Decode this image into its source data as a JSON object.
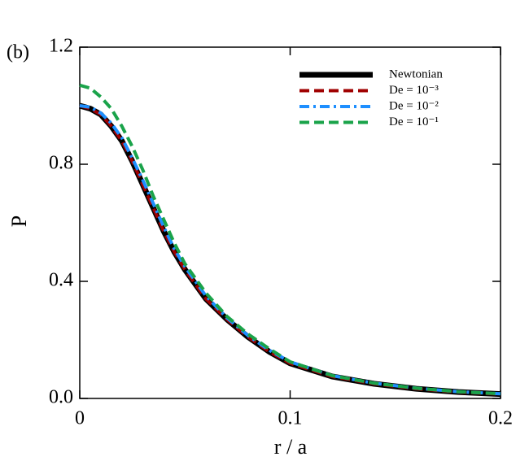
{
  "chart_data": {
    "type": "line",
    "panel_label": "(b)",
    "x_label": "r / a",
    "y_label": "P",
    "x": [
      0,
      0.005,
      0.01,
      0.015,
      0.02,
      0.025,
      0.03,
      0.035,
      0.04,
      0.045,
      0.05,
      0.06,
      0.07,
      0.08,
      0.09,
      0.1,
      0.12,
      0.14,
      0.16,
      0.18,
      0.2
    ],
    "series": [
      {
        "name": "Newtonian",
        "color": "#000000",
        "dash": "solid",
        "values": [
          1.0,
          0.99,
          0.97,
          0.93,
          0.88,
          0.81,
          0.73,
          0.65,
          0.57,
          0.5,
          0.44,
          0.34,
          0.27,
          0.21,
          0.16,
          0.12,
          0.075,
          0.05,
          0.033,
          0.022,
          0.015
        ]
      },
      {
        "name": "De = 10⁻³",
        "color": "#a00000",
        "dash": "dashed",
        "values": [
          1.0,
          0.99,
          0.97,
          0.93,
          0.88,
          0.81,
          0.73,
          0.65,
          0.57,
          0.5,
          0.44,
          0.34,
          0.27,
          0.21,
          0.16,
          0.12,
          0.075,
          0.05,
          0.033,
          0.022,
          0.015
        ]
      },
      {
        "name": "De = 10⁻²",
        "color": "#1e8fff",
        "dash": "dashdot",
        "values": [
          1.0,
          0.995,
          0.975,
          0.94,
          0.89,
          0.82,
          0.745,
          0.665,
          0.585,
          0.51,
          0.45,
          0.35,
          0.275,
          0.215,
          0.165,
          0.125,
          0.078,
          0.052,
          0.035,
          0.023,
          0.016
        ]
      },
      {
        "name": "De = 10⁻¹",
        "color": "#1aa34a",
        "dash": "dashed",
        "values": [
          1.07,
          1.06,
          1.03,
          0.99,
          0.93,
          0.86,
          0.78,
          0.69,
          0.61,
          0.53,
          0.46,
          0.36,
          0.28,
          0.22,
          0.17,
          0.125,
          0.078,
          0.052,
          0.035,
          0.023,
          0.016
        ]
      }
    ],
    "xlim": [
      0,
      0.2
    ],
    "xticks": [
      0,
      0.1,
      0.2
    ],
    "ylim": [
      0,
      1.2
    ],
    "yticks": [
      {
        "value": 0,
        "label": "0.0"
      },
      0.4,
      0.8,
      1.2
    ],
    "legend": "upper right"
  }
}
